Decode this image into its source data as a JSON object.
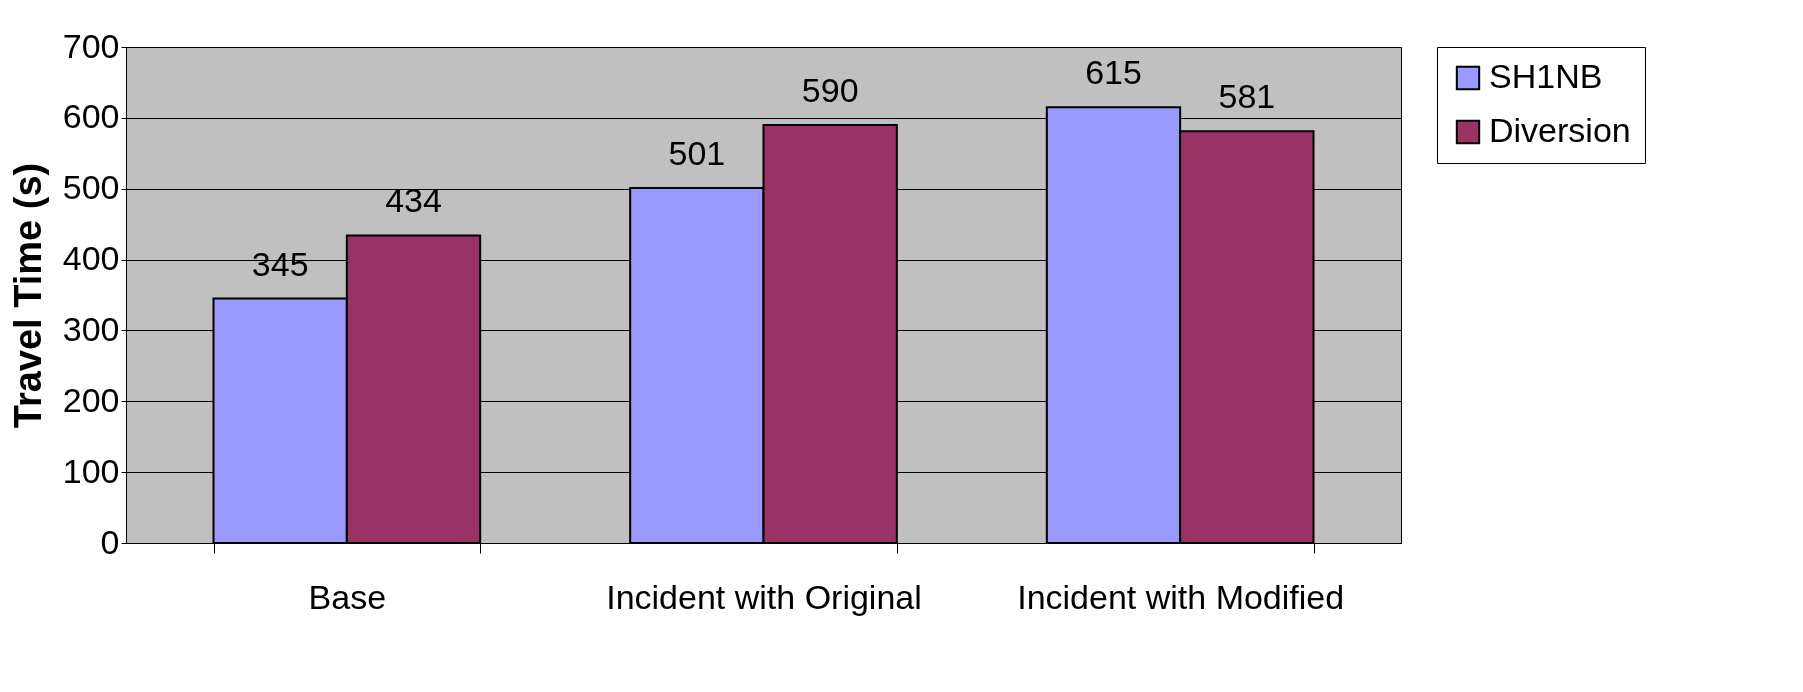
{
  "chart_data": {
    "type": "bar",
    "ylabel": "Travel Time (s)",
    "categories": [
      "Base",
      "Incident with Original",
      "Incident with Modified"
    ],
    "series": [
      {
        "name": "SH1NB",
        "color": "#9999ff",
        "values": [
          345,
          501,
          615
        ]
      },
      {
        "name": "Diversion",
        "color": "#993366",
        "values": [
          434,
          590,
          581
        ]
      }
    ],
    "ylim": [
      0,
      700
    ],
    "yticks": [
      0,
      100,
      200,
      300,
      400,
      500,
      600,
      700
    ],
    "grid": "y",
    "legend": "right",
    "data_labels": true
  }
}
